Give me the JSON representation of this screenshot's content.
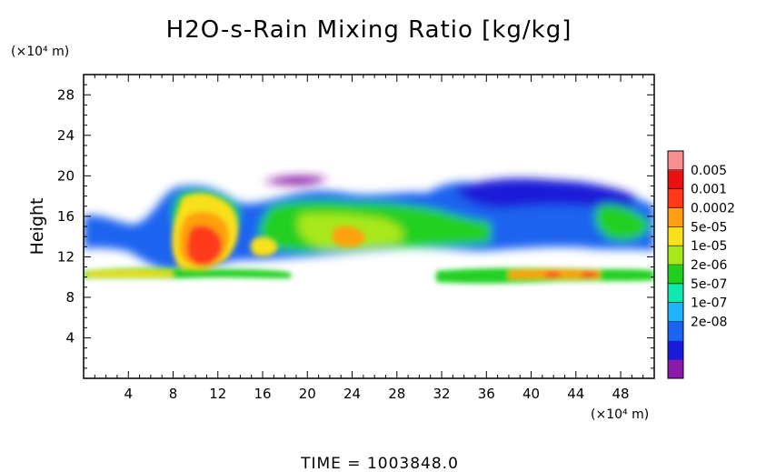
{
  "chart_data": {
    "type": "heatmap",
    "title": "H2O-s-Rain Mixing Ratio [kg/kg]",
    "ylabel": "Height",
    "x_unit_label": "(×10⁴ m)",
    "y_unit_label": "(×10⁴ m)",
    "xlim": [
      0,
      51
    ],
    "ylim": [
      0,
      30
    ],
    "x_ticks": [
      4,
      8,
      12,
      16,
      20,
      24,
      28,
      32,
      36,
      40,
      44,
      48
    ],
    "y_ticks": [
      4,
      8,
      12,
      16,
      20,
      24,
      28
    ],
    "colorbar": {
      "levels": [
        "0.005",
        "0.001",
        "0.0002",
        "5e-05",
        "1e-05",
        "2e-06",
        "5e-07",
        "1e-07",
        "2e-08"
      ],
      "colors": [
        "#8a1aa8",
        "#1a1ad8",
        "#1a64f0",
        "#20b4ff",
        "#10e8b0",
        "#20d020",
        "#a8e81a",
        "#f8e01a",
        "#ffa010",
        "#ff3a1a",
        "#e81010",
        "#f89090"
      ]
    },
    "regions": [
      {
        "x": [
          0,
          51
        ],
        "y": [
          12.8,
          16
        ],
        "level": 1
      },
      {
        "x": [
          2,
          50
        ],
        "y": [
          13.5,
          17.5
        ],
        "level": 2
      },
      {
        "x": [
          18,
          32
        ],
        "y": [
          13.5,
          17.5
        ],
        "level": 5
      },
      {
        "x": [
          20,
          30
        ],
        "y": [
          13,
          16.5
        ],
        "level": 6
      },
      {
        "x": [
          22,
          27
        ],
        "y": [
          13,
          15
        ],
        "level": 7
      },
      {
        "x": [
          8,
          14
        ],
        "y": [
          11,
          16
        ],
        "level": 8
      },
      {
        "x": [
          9,
          12
        ],
        "y": [
          11,
          14
        ],
        "level": 9
      },
      {
        "x": [
          10,
          12
        ],
        "y": [
          11.5,
          13
        ],
        "level": 10
      },
      {
        "x": [
          34,
          50
        ],
        "y": [
          15.5,
          18.5
        ],
        "level": 1
      },
      {
        "x": [
          16,
          25
        ],
        "y": [
          17.5,
          19.5
        ],
        "level": 2
      },
      {
        "x": [
          0,
          18
        ],
        "y": [
          9.8,
          10.6
        ],
        "level": 6
      },
      {
        "x": [
          32,
          51
        ],
        "y": [
          9.6,
          10.8
        ],
        "level": 6
      }
    ],
    "footer_label": "TIME",
    "time_value": "1003848.0"
  }
}
